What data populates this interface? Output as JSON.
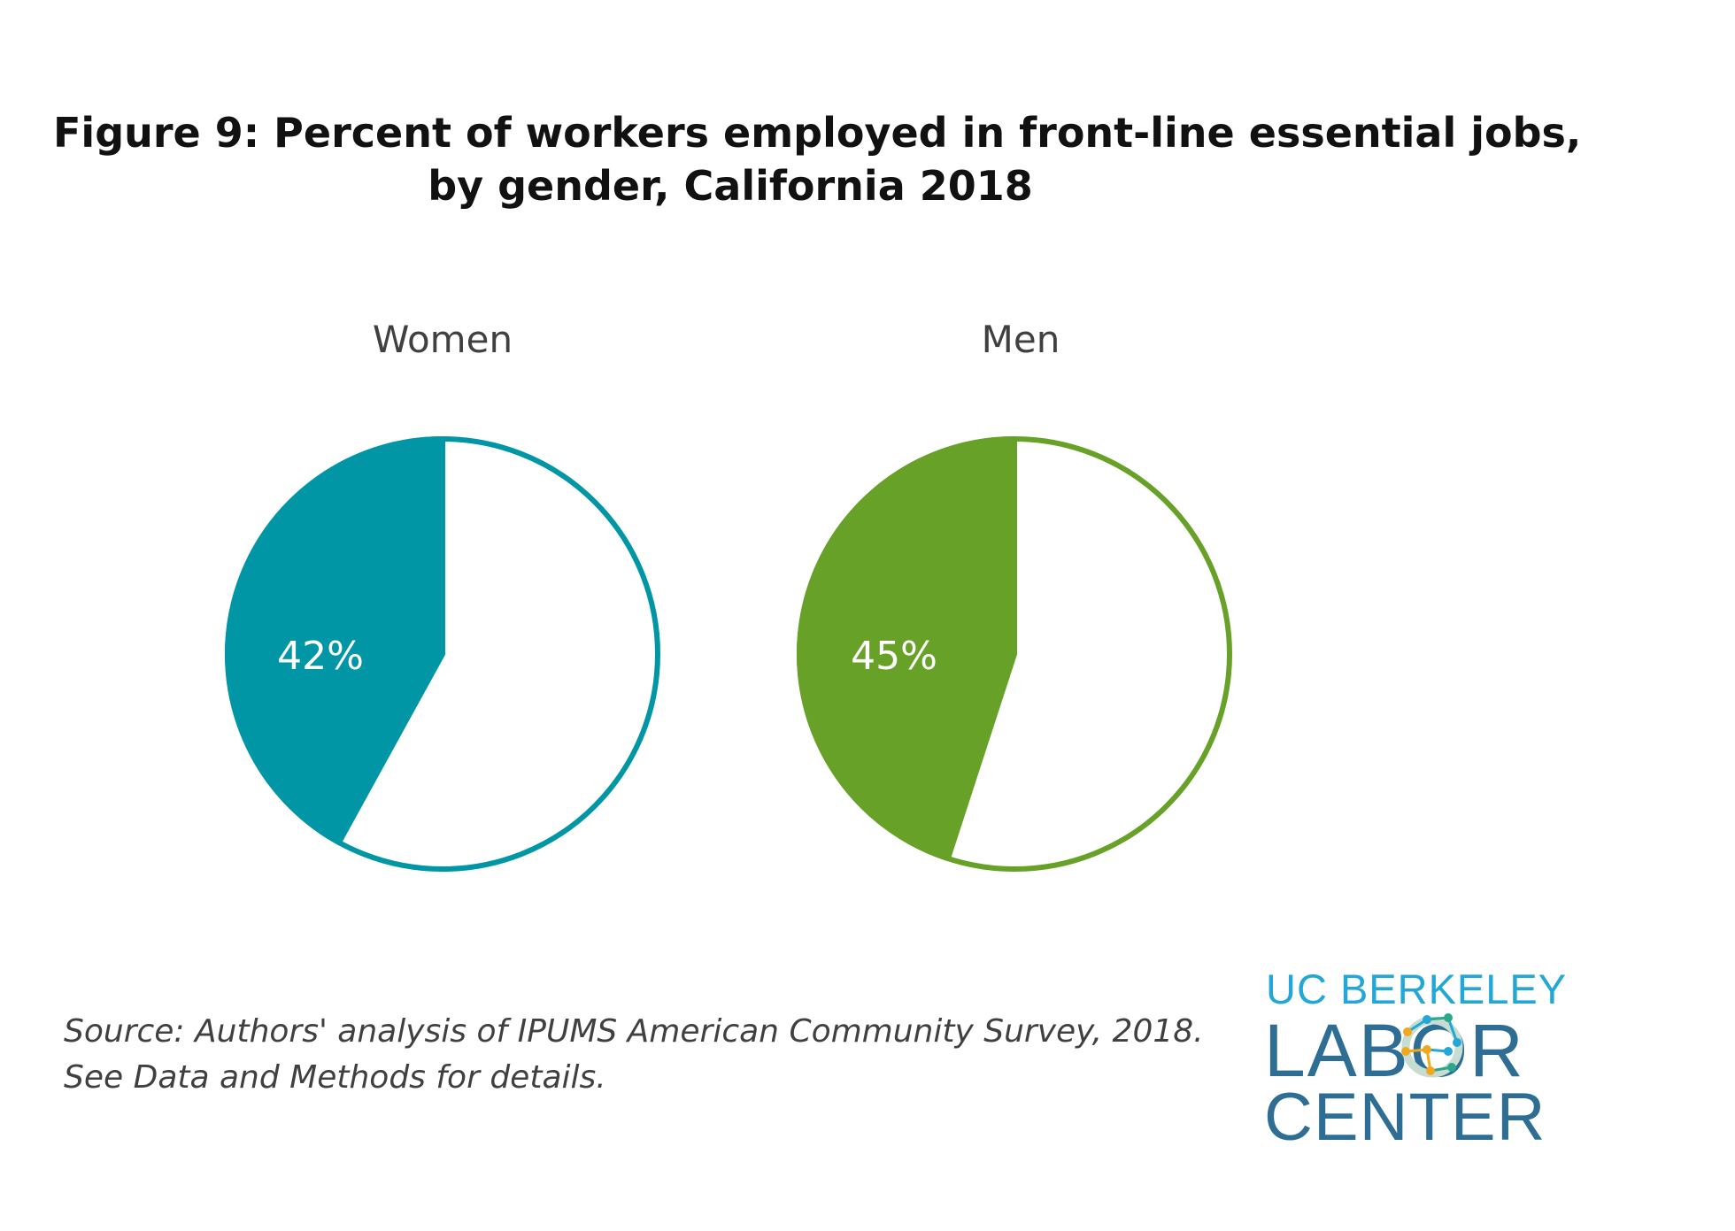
{
  "title_line1": "Figure 9: Percent of workers employed in front-line essential jobs,",
  "title_line2": "by gender, California 2018",
  "chart_data": [
    {
      "type": "pie",
      "title": "Women",
      "value_percent": 42,
      "label": "42%",
      "color": "#0096A6"
    },
    {
      "type": "pie",
      "title": "Men",
      "value_percent": 45,
      "label": "45%",
      "color": "#68A128"
    }
  ],
  "source_line1": "Source: Authors' analysis of IPUMS American Community Survey, 2018.",
  "source_line2": "See Data and Methods for details.",
  "logo": {
    "line1": "UC BERKELEY",
    "line2": "LABOR",
    "line3": "CENTER"
  }
}
